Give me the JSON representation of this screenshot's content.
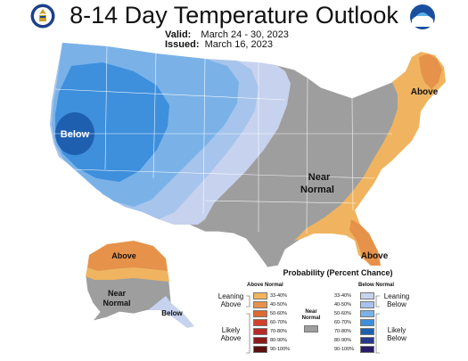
{
  "header": {
    "title": "8-14 Day Temperature Outlook",
    "valid_label": "Valid:",
    "valid_value": "March 24 - 30, 2023",
    "issued_label": "Issued:",
    "issued_value": "March 16, 2023"
  },
  "map_labels": {
    "west_below": "Below",
    "northeast_above": "Above",
    "center_near": "Near",
    "center_normal": "Normal",
    "florida_above": "Above",
    "alaska_above": "Above",
    "alaska_near": "Near",
    "alaska_normal": "Normal",
    "alaska_below": "Below"
  },
  "legend": {
    "title": "Probability (Percent Chance)",
    "above_header": "Above Normal",
    "below_header": "Below Normal",
    "near_label_1": "Near",
    "near_label_2": "Normal",
    "leaning_above": [
      "Leaning",
      "Above"
    ],
    "likely_above": [
      "Likely",
      "Above"
    ],
    "leaning_below": [
      "Leaning",
      "Below"
    ],
    "likely_below": [
      "Likely",
      "Below"
    ],
    "above_classes": [
      {
        "label": "33-40%",
        "color": "#f0b460"
      },
      {
        "label": "40-50%",
        "color": "#e6924a"
      },
      {
        "label": "50-60%",
        "color": "#dc6a32"
      },
      {
        "label": "60-70%",
        "color": "#d2402c"
      },
      {
        "label": "70-80%",
        "color": "#b52a28"
      },
      {
        "label": "80-90%",
        "color": "#8b1a1a"
      },
      {
        "label": "90-100%",
        "color": "#5a1010"
      }
    ],
    "below_classes": [
      {
        "label": "33-40%",
        "color": "#c7d2ee"
      },
      {
        "label": "40-50%",
        "color": "#a6c4ec"
      },
      {
        "label": "50-60%",
        "color": "#7ab2e8"
      },
      {
        "label": "60-70%",
        "color": "#3e8fdc"
      },
      {
        "label": "70-80%",
        "color": "#1e5fb0"
      },
      {
        "label": "80-90%",
        "color": "#263a8c"
      },
      {
        "label": "90-100%",
        "color": "#2a1c66"
      }
    ],
    "near_color": "#9e9e9e"
  },
  "icons": {
    "left_logo": "department-of-commerce-seal-icon",
    "right_logo": "noaa-logo-icon"
  }
}
